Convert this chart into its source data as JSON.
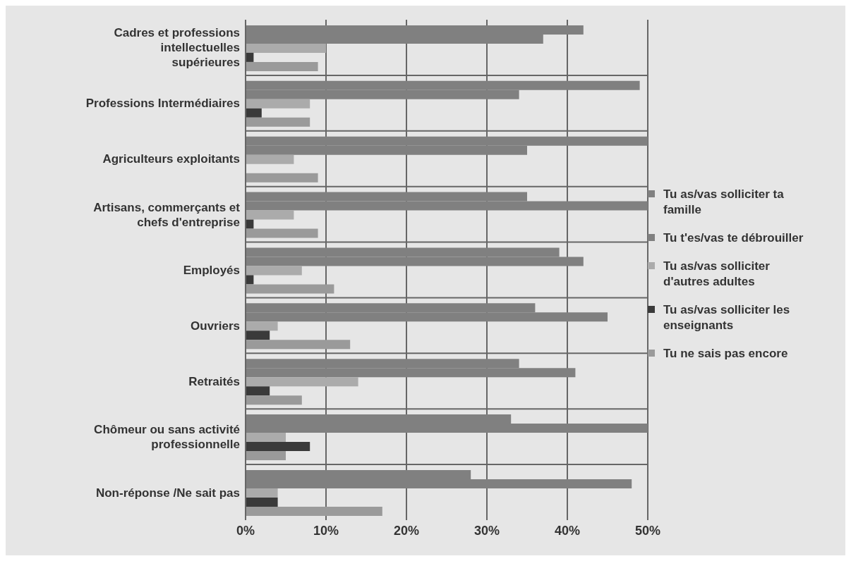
{
  "chart_data": {
    "type": "bar",
    "orientation": "horizontal",
    "categories": [
      "Cadres et professions intellectuelles supérieures",
      "Professions Intermédiaires",
      "Agriculteurs exploitants",
      "Artisans, commerçants et chefs d'entreprise",
      "Employés",
      "Ouvriers",
      "Retraités",
      "Chômeur ou sans activité professionnelle",
      "Non-réponse /Ne sait pas"
    ],
    "series": [
      {
        "name": "Tu as/vas solliciter ta famille",
        "color": "#808080",
        "values": [
          42,
          49,
          50,
          35,
          39,
          36,
          34,
          33,
          28
        ]
      },
      {
        "name": "Tu t'es/vas te débrouiller",
        "color": "#808080",
        "values": [
          37,
          34,
          35,
          50,
          42,
          45,
          41,
          50,
          48
        ]
      },
      {
        "name": "Tu as/vas solliciter d'autres adultes",
        "color": "#ababab",
        "values": [
          10,
          8,
          6,
          6,
          7,
          4,
          14,
          5,
          4
        ]
      },
      {
        "name": "Tu as/vas solliciter les enseignants",
        "color": "#3a3a3a",
        "values": [
          1,
          2,
          0,
          1,
          1,
          3,
          3,
          8,
          4
        ]
      },
      {
        "name": "Tu ne sais pas encore",
        "color": "#9a9a9a",
        "values": [
          9,
          8,
          9,
          9,
          11,
          13,
          7,
          5,
          17
        ]
      }
    ],
    "xlim": [
      0,
      50
    ],
    "xticks": [
      {
        "value": 0,
        "label": "0%"
      },
      {
        "value": 10,
        "label": "10%"
      },
      {
        "value": 20,
        "label": "20%"
      },
      {
        "value": 30,
        "label": "30%"
      },
      {
        "value": 40,
        "label": "40%"
      },
      {
        "value": 50,
        "label": "50%"
      }
    ],
    "grid": "x",
    "legend": "right"
  }
}
